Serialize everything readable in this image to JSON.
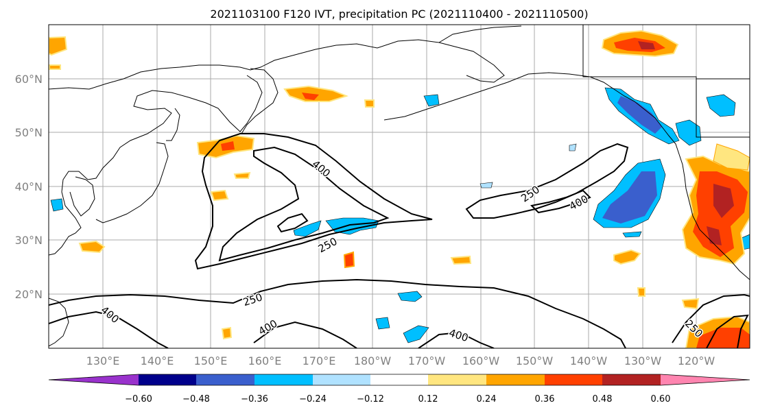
{
  "title": "2021103100 F120 IVT, precipitation PC (2021110400 - 2021110500)",
  "lat_labels": [
    "60°N",
    "50°N",
    "40°N",
    "30°N",
    "20°N"
  ],
  "lon_labels": [
    "130°E",
    "140°E",
    "150°E",
    "160°E",
    "170°E",
    "180°W",
    "170°W",
    "160°W",
    "150°W",
    "140°W",
    "130°W",
    "120°W"
  ],
  "contour_labels": [
    "400",
    "250",
    "400",
    "250",
    "250",
    "400",
    "400",
    "400",
    "250"
  ],
  "colorbar": {
    "ticks": [
      "−0.60",
      "−0.48",
      "−0.36",
      "−0.24",
      "−0.12",
      "0.12",
      "0.24",
      "0.36",
      "0.48",
      "0.60"
    ],
    "colors": [
      "#9932cc",
      "#00008b",
      "#3a5fcd",
      "#00bfff",
      "#b0e2ff",
      "#ffffff",
      "#ffe680",
      "#ffa500",
      "#ff4000",
      "#b22222",
      "#ff85b0"
    ]
  },
  "palette": {
    "strong_neg": "#3a5fcd",
    "mid_neg": "#00bfff",
    "weak_neg": "#b0e2ff",
    "weak_pos": "#ffe680",
    "mid_pos": "#ffa500",
    "strong_pos": "#ff4000",
    "very_pos": "#b22222"
  }
}
